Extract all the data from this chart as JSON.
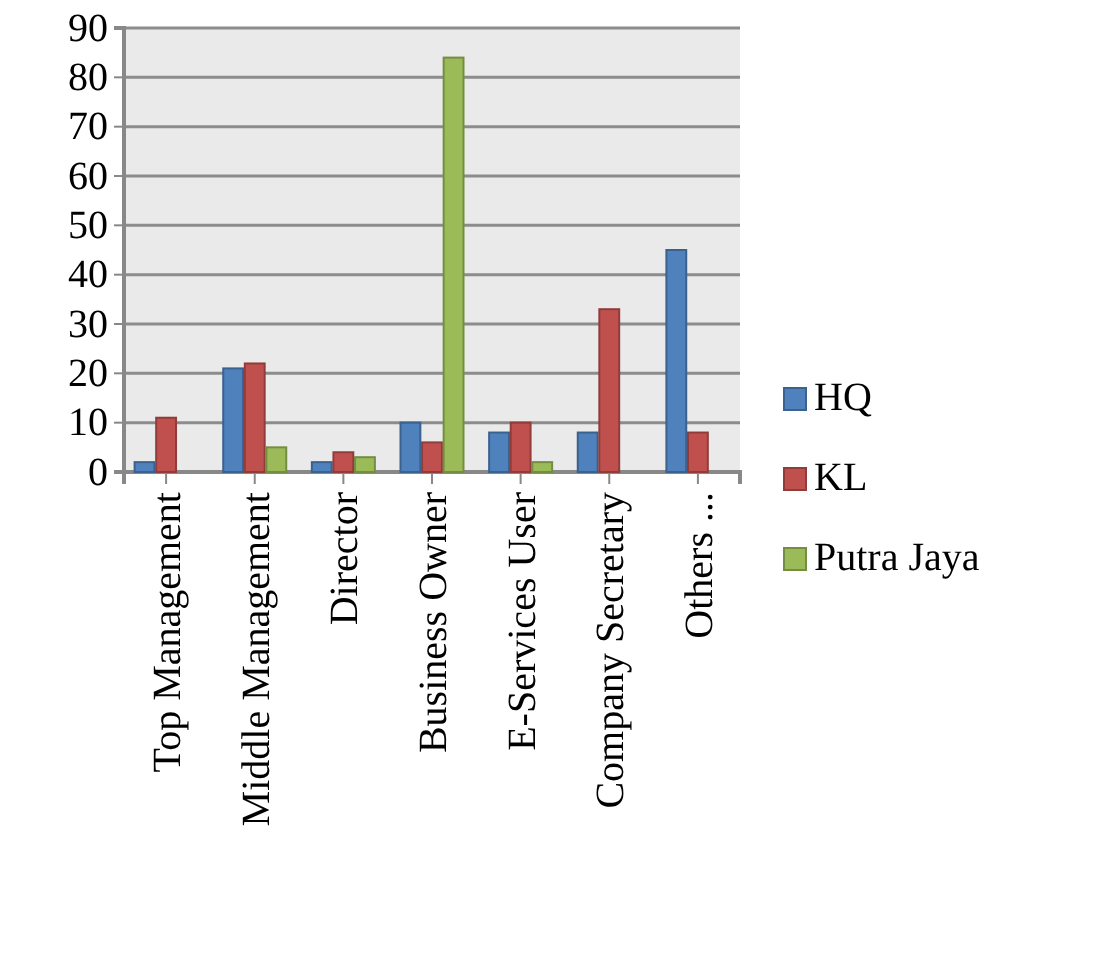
{
  "chart_data": {
    "type": "bar",
    "categories": [
      "Top Management",
      "Middle Management",
      "Director",
      "Business Owner",
      "E-Services User",
      "Company Secretary",
      "Others ..."
    ],
    "series": [
      {
        "name": "HQ",
        "color": "#4f81bd",
        "values": [
          2,
          21,
          2,
          10,
          8,
          8,
          45
        ]
      },
      {
        "name": "KL",
        "color": "#c0504d",
        "values": [
          11,
          22,
          4,
          6,
          10,
          33,
          8
        ]
      },
      {
        "name": "Putra Jaya",
        "color": "#9bbb59",
        "values": [
          0,
          5,
          3,
          84,
          2,
          0,
          0
        ]
      }
    ],
    "ylim": [
      0,
      90
    ],
    "yticks": [
      0,
      10,
      20,
      30,
      40,
      50,
      60,
      70,
      80,
      90
    ],
    "grid": "y",
    "legend": "right"
  }
}
